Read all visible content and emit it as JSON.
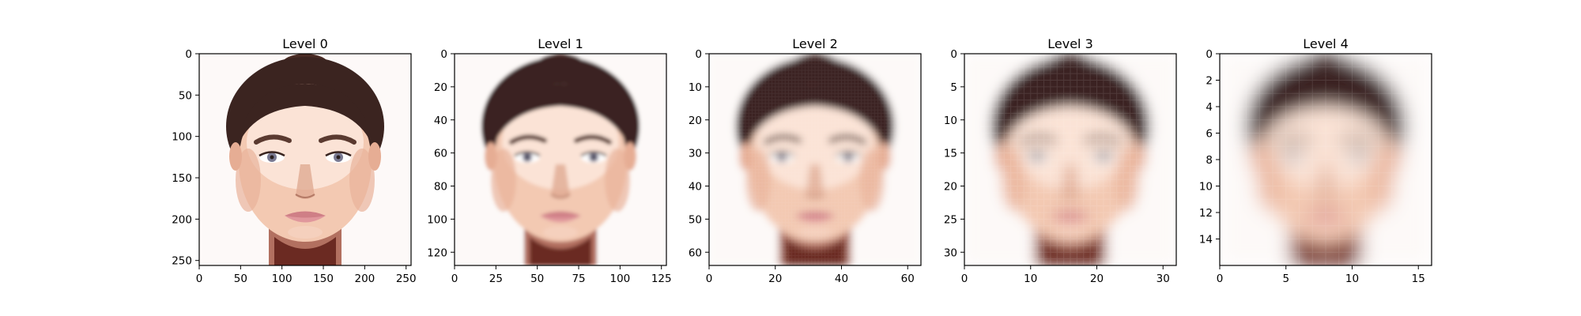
{
  "figure": {
    "background": "#ffffff"
  },
  "chart_data": [
    {
      "type": "heatmap",
      "title": "Level 0",
      "image_content": "face-photo",
      "image_size": [
        256,
        256
      ],
      "xlim": [
        0,
        256
      ],
      "ylim": [
        256,
        0
      ],
      "xticks": [
        0,
        50,
        100,
        150,
        200,
        250
      ],
      "yticks": [
        0,
        50,
        100,
        150,
        200,
        250
      ],
      "blur_level": 0
    },
    {
      "type": "heatmap",
      "title": "Level 1",
      "image_content": "face-photo",
      "image_size": [
        128,
        128
      ],
      "xlim": [
        0,
        128
      ],
      "ylim": [
        128,
        0
      ],
      "xticks": [
        0,
        25,
        50,
        75,
        100,
        125
      ],
      "yticks": [
        0,
        20,
        40,
        60,
        80,
        100,
        120
      ],
      "blur_level": 1
    },
    {
      "type": "heatmap",
      "title": "Level 2",
      "image_content": "face-photo",
      "image_size": [
        64,
        64
      ],
      "xlim": [
        0,
        64
      ],
      "ylim": [
        64,
        0
      ],
      "xticks": [
        0,
        20,
        40,
        60
      ],
      "yticks": [
        0,
        10,
        20,
        30,
        40,
        50,
        60
      ],
      "blur_level": 2
    },
    {
      "type": "heatmap",
      "title": "Level 3",
      "image_content": "face-photo",
      "image_size": [
        32,
        32
      ],
      "xlim": [
        0,
        32
      ],
      "ylim": [
        32,
        0
      ],
      "xticks": [
        0,
        10,
        20,
        30
      ],
      "yticks": [
        0,
        5,
        10,
        15,
        20,
        25,
        30
      ],
      "blur_level": 3
    },
    {
      "type": "heatmap",
      "title": "Level 4",
      "image_content": "face-photo",
      "image_size": [
        16,
        16
      ],
      "xlim": [
        0,
        16
      ],
      "ylim": [
        16,
        0
      ],
      "xticks": [
        0,
        5,
        10,
        15
      ],
      "yticks": [
        0,
        2,
        4,
        6,
        8,
        10,
        12,
        14
      ],
      "blur_level": 4
    }
  ],
  "colors": {
    "background": "#fdf9f8",
    "hair": "#3b2420",
    "skin_light": "#fbe3d6",
    "skin": "#f3c9b2",
    "skin_shadow": "#d99a80",
    "neck": "#b27060",
    "neck_dark": "#6b2a22",
    "brow": "#5a3a30",
    "eye": "#7a7a92",
    "lips": "#d98a90",
    "nose_shadow": "#e0aa92"
  }
}
